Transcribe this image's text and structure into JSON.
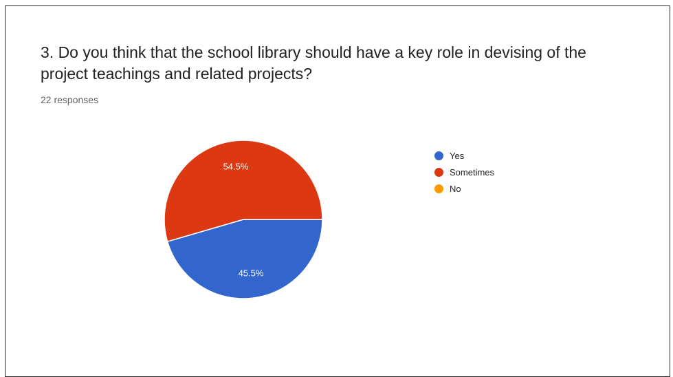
{
  "header": {
    "question": "3. Do you think that the school library should have a key role in devising of the project teachings and related projects?",
    "responses": "22 responses"
  },
  "chart_data": {
    "type": "pie",
    "title": "3. Do you think that the school library should have a key role in devising of the project teachings and related projects?",
    "subtitle": "22 responses",
    "categories": [
      "Yes",
      "Sometimes",
      "No"
    ],
    "values": [
      45.5,
      54.5,
      0
    ],
    "labels": [
      "45.5%",
      "54.5%",
      ""
    ],
    "colors": [
      "#3366cc",
      "#dc3912",
      "#ff9900"
    ],
    "legend_position": "right"
  }
}
